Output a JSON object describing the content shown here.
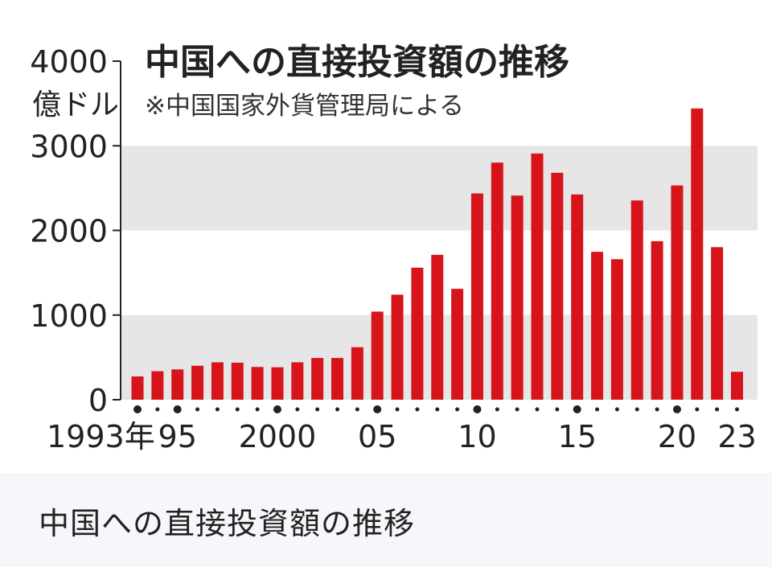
{
  "caption": "中国への直接投資額の推移",
  "chart_data": {
    "type": "bar",
    "title": "中国への直接投資額の推移",
    "subtitle": "※中国国家外貨管理局による",
    "ylabel_unit": "億ドル",
    "x": [
      1993,
      1994,
      1995,
      1996,
      1997,
      1998,
      1999,
      2000,
      2001,
      2002,
      2003,
      2004,
      2005,
      2006,
      2007,
      2008,
      2009,
      2010,
      2011,
      2012,
      2013,
      2014,
      2015,
      2016,
      2017,
      2018,
      2019,
      2020,
      2021,
      2022,
      2023
    ],
    "values": [
      275,
      337,
      358,
      401,
      442,
      437,
      387,
      383,
      442,
      493,
      493,
      620,
      1041,
      1241,
      1560,
      1712,
      1310,
      2437,
      2801,
      2412,
      2909,
      2681,
      2425,
      1747,
      1660,
      2354,
      1873,
      2531,
      3441,
      1802,
      330
    ],
    "x_tick_labels": [
      {
        "year": 1993,
        "label": "1993年"
      },
      {
        "year": 1995,
        "label": "95"
      },
      {
        "year": 2000,
        "label": "2000"
      },
      {
        "year": 2005,
        "label": "05"
      },
      {
        "year": 2010,
        "label": "10"
      },
      {
        "year": 2015,
        "label": "15"
      },
      {
        "year": 2020,
        "label": "20"
      },
      {
        "year": 2023,
        "label": "23"
      }
    ],
    "y_ticks": [
      {
        "value": 0,
        "label": "0"
      },
      {
        "value": 1000,
        "label": "1000"
      },
      {
        "value": 2000,
        "label": "2000"
      },
      {
        "value": 3000,
        "label": "3000"
      },
      {
        "value": 4000,
        "label": "4000"
      }
    ],
    "ylim": [
      0,
      4000
    ],
    "grid": "alternating horizontal bands",
    "colors": {
      "bar": "#d7141a",
      "band": "#e6e6e6",
      "text": "#222222",
      "axis": "#222222"
    }
  }
}
